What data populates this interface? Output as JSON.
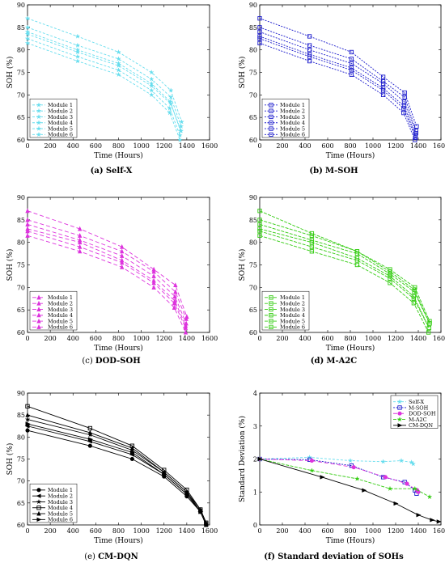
{
  "chart_data": [
    {
      "type": "line",
      "caption_prefix": "(a)",
      "caption_text": "Self-X",
      "caption_bold": true,
      "color": "#66ddee",
      "marker": "star",
      "dash": "3,2",
      "xlabel": "Time (Hours)",
      "ylabel": "SOH (%)",
      "xlim": [
        0,
        1600
      ],
      "ylim": [
        60,
        90
      ],
      "xticks": [
        0,
        200,
        400,
        600,
        800,
        1000,
        1200,
        1400,
        1600
      ],
      "yticks": [
        60,
        65,
        70,
        75,
        80,
        85,
        90
      ],
      "legend_position": "lower-left",
      "series": [
        {
          "name": "Module 1",
          "x": [
            0,
            440,
            800,
            1090,
            1250,
            1340
          ],
          "y": [
            81.5,
            77.5,
            74.5,
            70,
            66,
            60
          ]
        },
        {
          "name": "Module 2",
          "x": [
            0,
            440,
            800,
            1090,
            1250,
            1340
          ],
          "y": [
            82.5,
            78.5,
            75.5,
            71,
            67,
            61
          ]
        },
        {
          "name": "Module 3",
          "x": [
            0,
            440,
            800,
            1090,
            1260,
            1350
          ],
          "y": [
            83.5,
            79.5,
            76.5,
            72,
            68,
            62
          ]
        },
        {
          "name": "Module 4",
          "x": [
            0,
            440,
            800,
            1090,
            1260,
            1355
          ],
          "y": [
            87,
            83,
            79.5,
            75,
            71,
            64
          ]
        },
        {
          "name": "Module 5",
          "x": [
            0,
            440,
            800,
            1090,
            1260,
            1350
          ],
          "y": [
            85,
            81,
            78,
            73.5,
            69.5,
            63
          ]
        },
        {
          "name": "Module 6",
          "x": [
            0,
            440,
            800,
            1090,
            1255,
            1345
          ],
          "y": [
            84,
            80,
            77,
            72.5,
            68.5,
            62
          ]
        }
      ]
    },
    {
      "type": "line",
      "caption_prefix": "(b)",
      "caption_text": "M-SOH",
      "caption_bold": true,
      "color": "#1a1acc",
      "marker": "square",
      "dash": "2,1.5",
      "xlabel": "Time (Hours)",
      "ylabel": "SOH (%)",
      "xlim": [
        0,
        1600
      ],
      "ylim": [
        60,
        90
      ],
      "xticks": [
        0,
        200,
        400,
        600,
        800,
        1000,
        1200,
        1400,
        1600
      ],
      "yticks": [
        60,
        65,
        70,
        75,
        80,
        85,
        90
      ],
      "legend_position": "lower-left",
      "series": [
        {
          "name": "Module 1",
          "x": [
            0,
            440,
            810,
            1090,
            1270,
            1370
          ],
          "y": [
            81.5,
            77.5,
            74.5,
            70,
            66,
            60
          ]
        },
        {
          "name": "Module 2",
          "x": [
            0,
            440,
            810,
            1090,
            1270,
            1375
          ],
          "y": [
            82.5,
            78.5,
            75.5,
            71,
            67,
            60.5
          ]
        },
        {
          "name": "Module 3",
          "x": [
            0,
            440,
            810,
            1090,
            1275,
            1380
          ],
          "y": [
            84,
            80,
            77,
            72.5,
            68.5,
            61.5
          ]
        },
        {
          "name": "Module 4",
          "x": [
            0,
            440,
            810,
            1090,
            1280,
            1385
          ],
          "y": [
            87,
            83,
            79.5,
            74,
            70.5,
            63
          ]
        },
        {
          "name": "Module 5",
          "x": [
            0,
            440,
            810,
            1090,
            1280,
            1380
          ],
          "y": [
            85,
            81,
            78,
            73,
            69.5,
            62
          ]
        },
        {
          "name": "Module 6",
          "x": [
            0,
            440,
            810,
            1090,
            1275,
            1375
          ],
          "y": [
            83,
            79,
            76,
            71.5,
            67.5,
            61
          ]
        }
      ]
    },
    {
      "type": "line",
      "caption_prefix": "(c)",
      "caption_text": "DOD-SOH",
      "caption_bold": false,
      "color": "#dd33dd",
      "marker": "triangle",
      "dash": "5,3",
      "xlabel": "Time (Hours)",
      "ylabel": "SOH (%)",
      "xlim": [
        0,
        1600
      ],
      "ylim": [
        60,
        90
      ],
      "xticks": [
        0,
        200,
        400,
        600,
        800,
        1000,
        1200,
        1400,
        1600
      ],
      "yticks": [
        60,
        65,
        70,
        75,
        80,
        85,
        90
      ],
      "legend_position": "lower-left",
      "series": [
        {
          "name": "Module 1",
          "x": [
            0,
            460,
            830,
            1110,
            1290,
            1390
          ],
          "y": [
            81.5,
            78,
            74.5,
            70,
            65.5,
            60
          ]
        },
        {
          "name": "Module 2",
          "x": [
            0,
            460,
            830,
            1110,
            1290,
            1390
          ],
          "y": [
            82.5,
            79,
            75.5,
            71,
            66.5,
            61
          ]
        },
        {
          "name": "Module 3",
          "x": [
            0,
            460,
            830,
            1110,
            1295,
            1395
          ],
          "y": [
            84,
            80.5,
            77,
            72.5,
            68,
            62
          ]
        },
        {
          "name": "Module 4",
          "x": [
            0,
            460,
            830,
            1110,
            1300,
            1400
          ],
          "y": [
            87,
            83,
            79,
            74,
            70.5,
            63.5
          ]
        },
        {
          "name": "Module 5",
          "x": [
            0,
            460,
            830,
            1110,
            1300,
            1395
          ],
          "y": [
            85,
            81.5,
            78,
            73.5,
            69,
            63
          ]
        },
        {
          "name": "Module 6",
          "x": [
            0,
            460,
            830,
            1110,
            1295,
            1390
          ],
          "y": [
            83,
            80,
            76,
            71.5,
            67,
            61.5
          ]
        }
      ]
    },
    {
      "type": "line",
      "caption_prefix": "(d)",
      "caption_text": "M-A2C",
      "caption_bold": true,
      "color": "#33cc11",
      "marker": "square",
      "dash": "4,1.5",
      "xlabel": "Time (Hours)",
      "ylabel": "SOH (%)",
      "xlim": [
        0,
        1600
      ],
      "ylim": [
        60,
        90
      ],
      "xticks": [
        0,
        200,
        400,
        600,
        800,
        1000,
        1200,
        1400,
        1600
      ],
      "yticks": [
        60,
        65,
        70,
        75,
        80,
        85,
        90
      ],
      "legend_position": "lower-left",
      "series": [
        {
          "name": "Module 1",
          "x": [
            0,
            460,
            860,
            1150,
            1360,
            1490
          ],
          "y": [
            81.5,
            78,
            75,
            71,
            66.5,
            60
          ]
        },
        {
          "name": "Module 2",
          "x": [
            0,
            460,
            860,
            1150,
            1360,
            1495
          ],
          "y": [
            82.5,
            79,
            76,
            72,
            67.5,
            61
          ]
        },
        {
          "name": "Module 3",
          "x": [
            0,
            460,
            860,
            1150,
            1365,
            1500
          ],
          "y": [
            84,
            80.5,
            77.5,
            73,
            69,
            62
          ]
        },
        {
          "name": "Module 4",
          "x": [
            0,
            460,
            860,
            1150,
            1370,
            1500
          ],
          "y": [
            87,
            82,
            78,
            74,
            70,
            62.5
          ]
        },
        {
          "name": "Module 5",
          "x": [
            0,
            460,
            860,
            1150,
            1365,
            1500
          ],
          "y": [
            85,
            81.5,
            78,
            73.5,
            69.5,
            62
          ]
        },
        {
          "name": "Module 6",
          "x": [
            0,
            460,
            860,
            1150,
            1360,
            1495
          ],
          "y": [
            83,
            80,
            76.5,
            72.5,
            68,
            61
          ]
        }
      ]
    },
    {
      "type": "line",
      "caption_prefix": "(e)",
      "caption_text": "CM-DQN",
      "caption_bold": false,
      "color": "#000000",
      "marker": "mixed",
      "dash": "",
      "xlabel": "Time (Hours)",
      "ylabel": "SOH (%)",
      "xlim": [
        0,
        1600
      ],
      "ylim": [
        60,
        90
      ],
      "xticks": [
        0,
        200,
        400,
        600,
        800,
        1000,
        1200,
        1400,
        1600
      ],
      "yticks": [
        60,
        65,
        70,
        75,
        80,
        85,
        90
      ],
      "legend_position": "lower-left",
      "series": [
        {
          "name": "Module 1",
          "x": [
            0,
            550,
            920,
            1200,
            1400,
            1520,
            1570
          ],
          "y": [
            81.5,
            78,
            75,
            71,
            66.5,
            63,
            60
          ]
        },
        {
          "name": "Module 2",
          "x": [
            0,
            550,
            920,
            1200,
            1400,
            1520,
            1570
          ],
          "y": [
            82.5,
            79,
            76,
            71.5,
            67,
            63,
            60
          ]
        },
        {
          "name": "Module 3",
          "x": [
            0,
            550,
            920,
            1200,
            1400,
            1520,
            1570
          ],
          "y": [
            84,
            80.5,
            77,
            72,
            67.5,
            63.5,
            60.5
          ]
        },
        {
          "name": "Module 4",
          "x": [
            0,
            550,
            920,
            1200,
            1400,
            1520,
            1570
          ],
          "y": [
            87,
            82,
            78,
            72.5,
            68,
            63.5,
            60.5
          ]
        },
        {
          "name": "Module 5",
          "x": [
            0,
            550,
            920,
            1200,
            1400,
            1520,
            1570
          ],
          "y": [
            85,
            81,
            77.5,
            72,
            67.5,
            63,
            60
          ]
        },
        {
          "name": "Module 6",
          "x": [
            0,
            550,
            920,
            1200,
            1400,
            1520,
            1570
          ],
          "y": [
            83,
            79.5,
            76.5,
            71.5,
            67,
            63,
            60
          ]
        }
      ]
    },
    {
      "type": "line",
      "caption_prefix": "(f)",
      "caption_text": "Standard deviation of SOHs",
      "caption_bold": false,
      "xlabel": "Time (Hours)",
      "ylabel": "Standard Deviation (%)",
      "xlim": [
        0,
        1600
      ],
      "ylim": [
        0,
        4
      ],
      "xticks": [
        0,
        200,
        400,
        600,
        800,
        1000,
        1200,
        1400,
        1600
      ],
      "yticks": [
        0,
        1,
        2,
        3,
        4
      ],
      "legend_position": "top-right",
      "series": [
        {
          "name": "Self-X",
          "color": "#66ddee",
          "marker": "star",
          "dash": "3,2",
          "x": [
            0,
            440,
            800,
            1090,
            1250,
            1340,
            1355
          ],
          "y": [
            2.0,
            2.05,
            1.95,
            1.92,
            1.95,
            1.9,
            1.85
          ]
        },
        {
          "name": "M-SOH",
          "color": "#1a1acc",
          "marker": "square",
          "dash": "2,1.5",
          "x": [
            0,
            440,
            810,
            1090,
            1280,
            1370,
            1385
          ],
          "y": [
            2.0,
            1.98,
            1.8,
            1.45,
            1.3,
            1.05,
            0.95
          ]
        },
        {
          "name": "DOD-SOH",
          "color": "#dd33dd",
          "marker": "circle",
          "dash": "5,3",
          "x": [
            0,
            460,
            830,
            1110,
            1300,
            1390,
            1400
          ],
          "y": [
            2.0,
            1.95,
            1.75,
            1.45,
            1.25,
            1.05,
            1.0
          ]
        },
        {
          "name": "M-A2C",
          "color": "#33cc11",
          "marker": "star",
          "dash": "4,1.5",
          "x": [
            0,
            460,
            860,
            1150,
            1370,
            1500
          ],
          "y": [
            2.0,
            1.65,
            1.4,
            1.1,
            1.1,
            0.85
          ]
        },
        {
          "name": "CM-DQN",
          "color": "#000000",
          "marker": "triangle-right",
          "dash": "",
          "x": [
            0,
            550,
            920,
            1200,
            1400,
            1520,
            1580
          ],
          "y": [
            2.0,
            1.45,
            1.05,
            0.65,
            0.3,
            0.15,
            0.1
          ]
        }
      ]
    }
  ]
}
